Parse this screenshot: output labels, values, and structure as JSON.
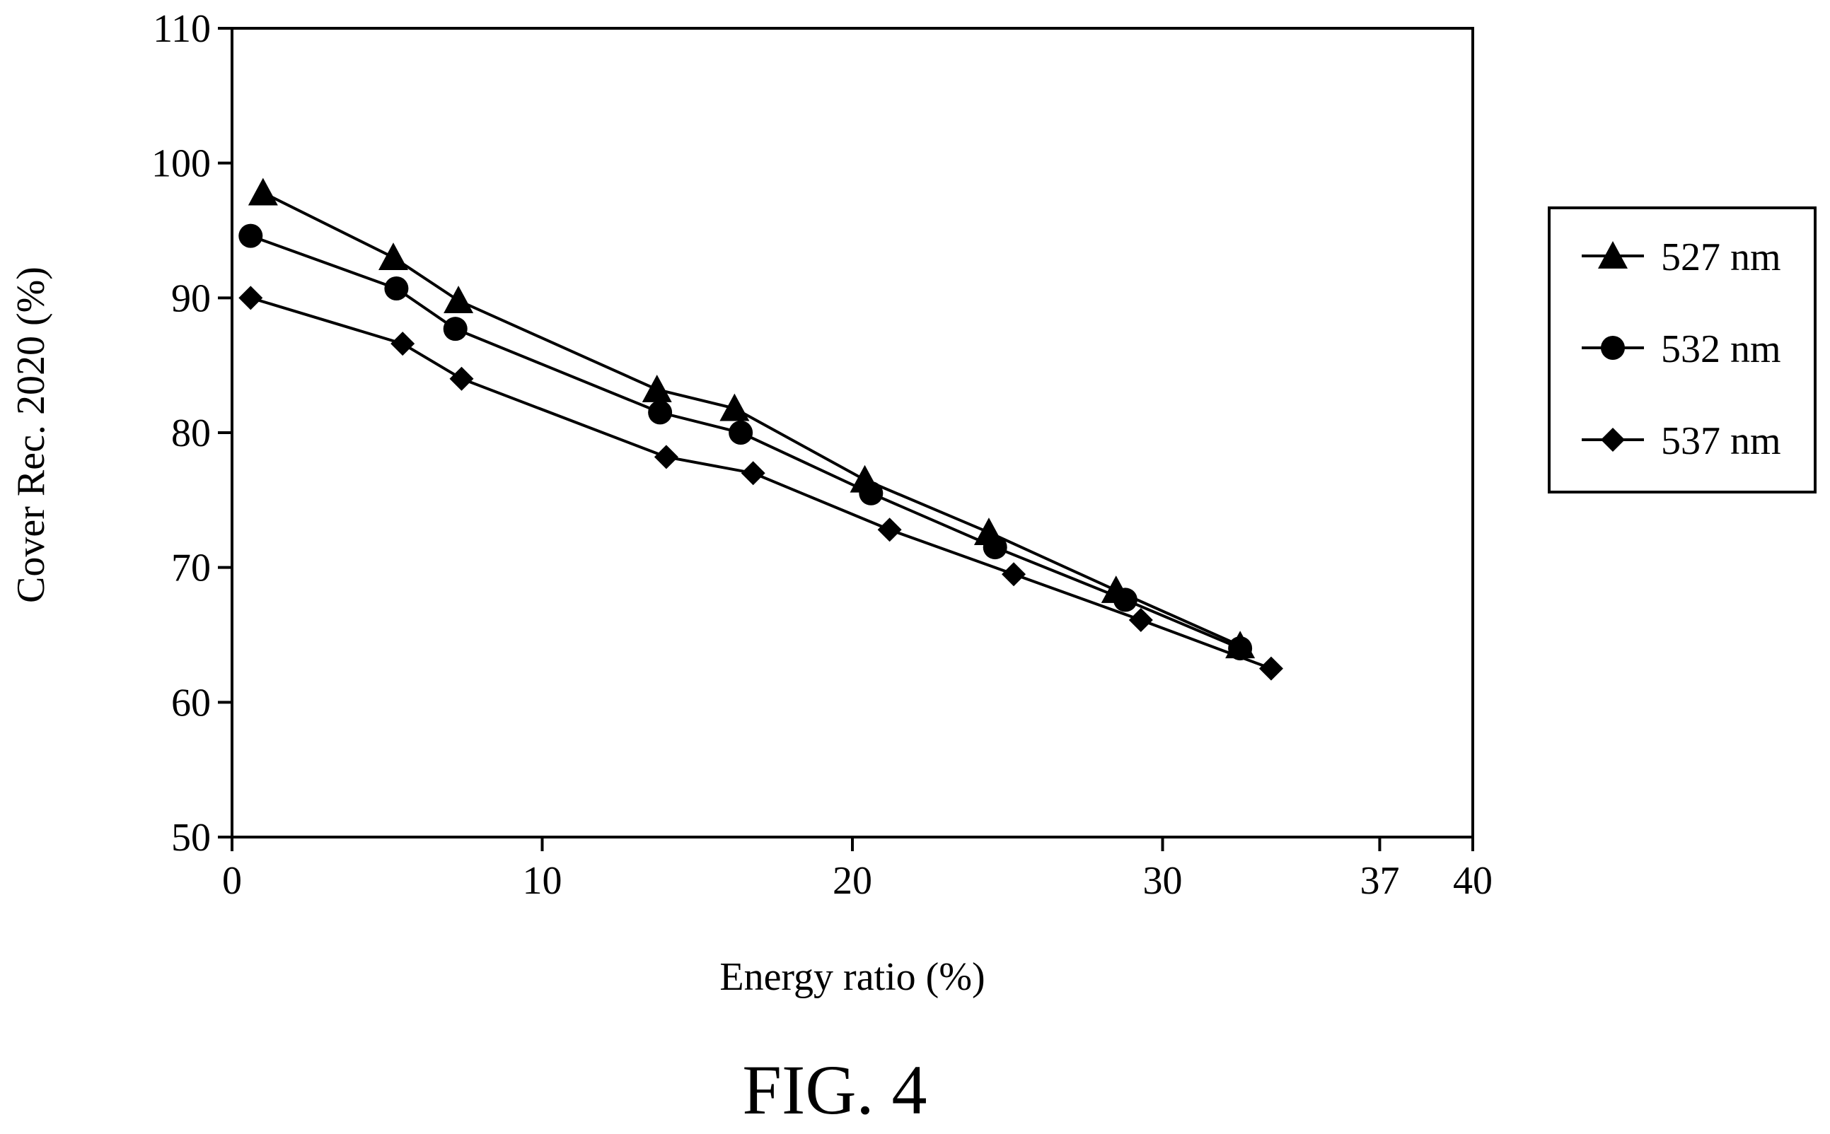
{
  "figure_caption": "FIG. 4",
  "chart_data": {
    "type": "line",
    "xlabel": "Energy ratio (%)",
    "ylabel": "Cover Rec. 2020 (%)",
    "xlim": [
      0,
      40
    ],
    "ylim": [
      50,
      110
    ],
    "x_ticks": [
      0,
      10,
      20,
      30,
      37,
      40
    ],
    "y_ticks": [
      50,
      60,
      70,
      80,
      90,
      100,
      110
    ],
    "grid": false,
    "legend_position": "right",
    "series": [
      {
        "name": "527 nm",
        "marker": "triangle",
        "points": [
          [
            1.0,
            97.8
          ],
          [
            5.2,
            93.0
          ],
          [
            7.3,
            89.8
          ],
          [
            13.7,
            83.2
          ],
          [
            16.2,
            81.8
          ],
          [
            20.4,
            76.5
          ],
          [
            24.4,
            72.6
          ],
          [
            28.5,
            68.3
          ],
          [
            32.5,
            64.2
          ]
        ]
      },
      {
        "name": "532 nm",
        "marker": "circle",
        "points": [
          [
            0.6,
            94.6
          ],
          [
            5.3,
            90.7
          ],
          [
            7.2,
            87.7
          ],
          [
            13.8,
            81.5
          ],
          [
            16.4,
            80.0
          ],
          [
            20.6,
            75.5
          ],
          [
            24.6,
            71.5
          ],
          [
            28.8,
            67.6
          ],
          [
            32.5,
            64.0
          ]
        ]
      },
      {
        "name": "537 nm",
        "marker": "diamond",
        "points": [
          [
            0.6,
            90.0
          ],
          [
            5.5,
            86.6
          ],
          [
            7.4,
            84.0
          ],
          [
            14.0,
            78.2
          ],
          [
            16.8,
            77.0
          ],
          [
            21.2,
            72.8
          ],
          [
            25.2,
            69.5
          ],
          [
            29.3,
            66.1
          ],
          [
            33.5,
            62.5
          ]
        ]
      }
    ]
  }
}
